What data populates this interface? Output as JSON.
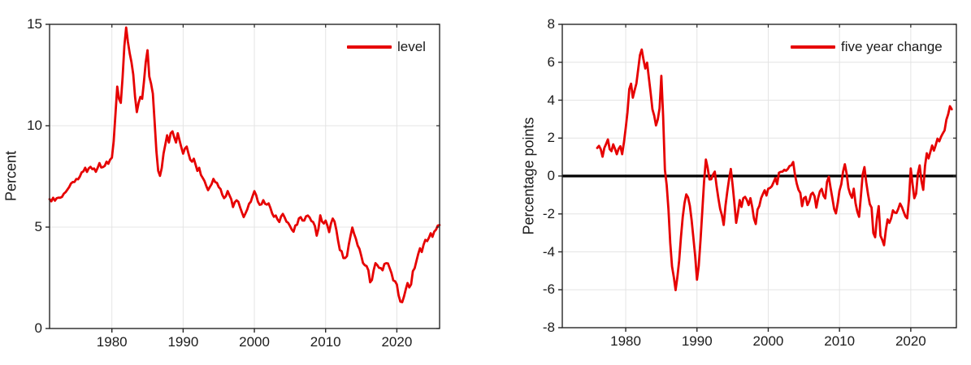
{
  "figure": {
    "background": "#ffffff",
    "grid_color": "#e4e4e4",
    "axis_color": "#262626",
    "tick_label_color": "#1b1b1b"
  },
  "charts": [
    {
      "ylabel": "Percent",
      "legend": "level"
    },
    {
      "ylabel": "Percentage points",
      "legend": "five year change"
    }
  ],
  "chart_data": [
    {
      "type": "line",
      "title": "",
      "xlabel": "",
      "ylabel": "Percent",
      "legend_entries": [
        "level"
      ],
      "legend_position": "upper right",
      "grid": true,
      "line_color": "#e60000",
      "zero_line": false,
      "xlim": [
        1971.25,
        2026.0
      ],
      "ylim": [
        0,
        15
      ],
      "xticks": [
        1980,
        1990,
        2000,
        2010,
        2020
      ],
      "yticks": [
        0,
        5,
        10,
        15
      ],
      "series": {
        "name": "level",
        "x_start": 1971.25,
        "x_step": 0.25,
        "values": [
          6.35,
          6.3,
          6.42,
          6.33,
          6.4,
          6.48,
          6.42,
          6.52,
          6.62,
          6.75,
          6.82,
          7.0,
          7.12,
          7.25,
          7.2,
          7.4,
          7.33,
          7.52,
          7.67,
          7.78,
          7.9,
          7.75,
          7.87,
          8.0,
          7.83,
          7.92,
          7.7,
          7.95,
          8.13,
          7.97,
          7.93,
          8.05,
          8.2,
          8.15,
          8.3,
          8.45,
          9.2,
          10.6,
          11.9,
          11.35,
          11.1,
          12.4,
          13.9,
          14.87,
          14.1,
          13.6,
          13.1,
          12.55,
          11.4,
          10.7,
          11.1,
          11.45,
          11.3,
          12.2,
          13.1,
          13.75,
          12.4,
          12.1,
          11.55,
          10.2,
          8.7,
          7.8,
          7.5,
          7.95,
          8.6,
          9.1,
          9.5,
          9.2,
          9.6,
          9.75,
          9.4,
          9.2,
          9.6,
          9.3,
          8.9,
          8.65,
          8.85,
          9.0,
          8.6,
          8.35,
          8.2,
          8.4,
          8.05,
          7.8,
          7.9,
          7.6,
          7.4,
          7.3,
          7.0,
          6.85,
          6.95,
          7.15,
          7.35,
          7.25,
          7.15,
          7.0,
          6.85,
          6.62,
          6.4,
          6.55,
          6.75,
          6.6,
          6.35,
          6.02,
          6.2,
          6.35,
          6.22,
          6.0,
          5.7,
          5.52,
          5.65,
          5.9,
          6.12,
          6.28,
          6.5,
          6.8,
          6.55,
          6.28,
          6.07,
          6.15,
          6.3,
          6.18,
          6.08,
          6.2,
          5.92,
          5.7,
          5.48,
          5.6,
          5.35,
          5.28,
          5.5,
          5.68,
          5.45,
          5.3,
          5.18,
          5.08,
          4.85,
          4.8,
          5.05,
          5.15,
          5.4,
          5.52,
          5.3,
          5.35,
          5.5,
          5.6,
          5.45,
          5.33,
          5.22,
          5.08,
          4.55,
          4.95,
          5.55,
          5.3,
          5.15,
          5.35,
          5.05,
          4.78,
          5.15,
          5.45,
          5.25,
          4.9,
          4.3,
          3.9,
          3.78,
          3.5,
          3.45,
          3.6,
          4.1,
          4.6,
          4.95,
          4.7,
          4.4,
          4.12,
          3.9,
          3.62,
          3.2,
          3.15,
          3.05,
          2.9,
          2.25,
          2.42,
          2.85,
          3.25,
          3.1,
          3.02,
          2.95,
          2.9,
          3.15,
          3.25,
          3.18,
          3.0,
          2.7,
          2.4,
          2.3,
          2.2,
          1.6,
          1.35,
          1.27,
          1.6,
          1.9,
          2.27,
          2.0,
          2.2,
          2.8,
          3.0,
          3.3,
          3.7,
          3.93,
          3.8,
          4.1,
          4.4,
          4.28,
          4.5,
          4.67,
          4.55,
          4.75,
          4.9,
          5.05,
          5.13
        ]
      }
    },
    {
      "type": "line",
      "title": "",
      "xlabel": "",
      "ylabel": "Percentage points",
      "legend_entries": [
        "five year change"
      ],
      "legend_position": "upper right",
      "grid": true,
      "line_color": "#e60000",
      "zero_line": true,
      "zero_line_color": "#000000",
      "xlim": [
        1971.1,
        2026.4
      ],
      "ylim": [
        -8,
        8
      ],
      "xticks": [
        1980,
        1990,
        2000,
        2010,
        2020
      ],
      "yticks": [
        8,
        6,
        4,
        2,
        0,
        -2,
        -4,
        -6,
        -8
      ],
      "series": {
        "name": "five year change",
        "x_start": 1976.0,
        "x_step": 0.25,
        "values": [
          1.45,
          1.62,
          1.38,
          1.05,
          1.45,
          1.72,
          1.9,
          1.45,
          1.28,
          1.7,
          1.4,
          1.18,
          1.4,
          1.6,
          1.12,
          1.8,
          2.5,
          3.4,
          4.55,
          4.9,
          4.1,
          4.55,
          4.85,
          5.65,
          6.35,
          6.7,
          6.1,
          5.7,
          5.95,
          5.2,
          4.35,
          3.55,
          3.15,
          2.7,
          2.95,
          3.6,
          5.25,
          3.2,
          0.3,
          -0.45,
          -1.8,
          -3.5,
          -4.8,
          -5.3,
          -6.05,
          -5.3,
          -4.5,
          -3.2,
          -2.2,
          -1.4,
          -1.0,
          -1.1,
          -1.6,
          -2.3,
          -3.3,
          -4.2,
          -5.5,
          -4.7,
          -3.4,
          -1.8,
          -0.3,
          0.9,
          0.4,
          -0.15,
          -0.2,
          0.1,
          0.2,
          -0.5,
          -1.2,
          -1.7,
          -2.1,
          -2.55,
          -1.6,
          -0.8,
          -0.2,
          0.4,
          -0.5,
          -1.4,
          -2.5,
          -1.9,
          -1.3,
          -1.6,
          -1.2,
          -1.07,
          -1.3,
          -1.5,
          -1.2,
          -1.6,
          -2.28,
          -2.5,
          -1.8,
          -1.55,
          -1.2,
          -0.92,
          -0.78,
          -1.0,
          -0.7,
          -0.6,
          -0.57,
          -0.3,
          -0.14,
          -0.4,
          0.14,
          0.25,
          0.2,
          0.36,
          0.25,
          0.4,
          0.5,
          0.6,
          0.71,
          0.1,
          -0.43,
          -0.7,
          -0.92,
          -1.56,
          -1.2,
          -1.07,
          -1.56,
          -1.3,
          -1.0,
          -0.85,
          -1.1,
          -1.64,
          -1.2,
          -0.78,
          -0.71,
          -1.0,
          -1.21,
          -0.28,
          -0.07,
          -0.6,
          -1.2,
          -1.71,
          -2.0,
          -1.4,
          -0.8,
          -0.41,
          0.2,
          0.65,
          0.1,
          -0.6,
          -0.98,
          -1.12,
          -0.7,
          -1.4,
          -1.91,
          -2.12,
          -1.1,
          0.1,
          0.44,
          -0.3,
          -0.98,
          -1.45,
          -1.7,
          -2.98,
          -3.26,
          -2.2,
          -1.62,
          -3.12,
          -3.4,
          -3.62,
          -2.9,
          -2.26,
          -2.5,
          -2.2,
          -1.84,
          -1.9,
          -1.98,
          -1.7,
          -1.48,
          -1.6,
          -1.91,
          -2.1,
          -2.26,
          -1.2,
          0.37,
          -0.4,
          -1.2,
          -0.9,
          0.1,
          0.59,
          -0.3,
          -0.7,
          0.5,
          1.23,
          0.9,
          1.3,
          1.58,
          1.37,
          1.6,
          2.0,
          1.8,
          2.1,
          2.22,
          2.44,
          2.94,
          3.29,
          3.65,
          3.55
        ]
      }
    }
  ]
}
